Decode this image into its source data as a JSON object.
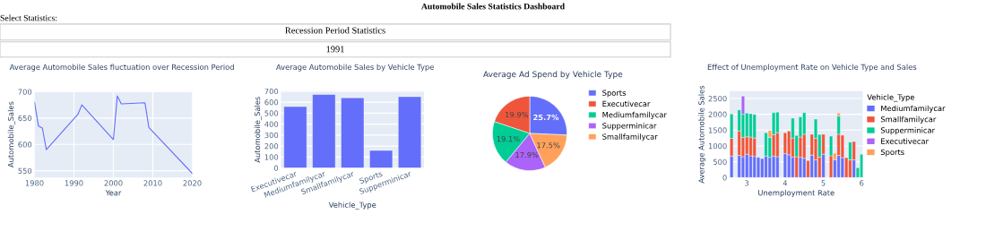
{
  "chart_data": [
    {
      "type": "other",
      "title": "Automobile Sales Statistics Dashboard",
      "annotations": [
        "Select Statistics:",
        "Recession Period Statistics",
        "1991"
      ]
    },
    {
      "type": "line",
      "title": "Average Automobile Sales fluctuation over Recession Period",
      "xlabel": "Year",
      "ylabel": "Automobile_Sales",
      "x": [
        1980,
        1981,
        1982,
        1983,
        1991,
        1992,
        2000,
        2001,
        2002,
        2008,
        2009,
        2020
      ],
      "values": [
        680,
        635,
        631,
        590,
        657,
        675,
        609,
        692,
        677,
        679,
        632,
        545
      ],
      "color": "#636efa",
      "xlim": [
        1980,
        2020
      ],
      "xticks": [
        1980,
        1990,
        2000,
        2010,
        2020
      ],
      "ylim": [
        537,
        701
      ],
      "yticks": [
        550,
        600,
        650,
        700
      ],
      "grid": true
    },
    {
      "type": "bar",
      "title": "Average Automobile Sales by Vehicle Type",
      "xlabel": "Vehicle_Type",
      "ylabel": "Automobile_Sales",
      "categories": [
        "Executivecar",
        "Mediumfamilycar",
        "Smallfamilycar",
        "Sports",
        "Supperminicar"
      ],
      "values": [
        560,
        670,
        640,
        160,
        650
      ],
      "color": "#636efa",
      "ylim": [
        0,
        700
      ],
      "yticks": [
        0,
        100,
        200,
        300,
        400,
        500,
        600,
        700
      ],
      "grid": "y"
    },
    {
      "type": "pie",
      "title": "Average Ad Spend by Vehicle Type",
      "categories": [
        "Sports",
        "Executivecar",
        "Mediumfamilycar",
        "Supperminicar",
        "Smallfamilycar"
      ],
      "values": [
        25.7,
        19.9,
        19.1,
        17.9,
        17.5
      ],
      "value_labels": [
        "25.7%",
        "19.9%",
        "19.1%",
        "17.9%",
        "17.5%"
      ],
      "colors": [
        "#636efa",
        "#ef553b",
        "#00cc96",
        "#ab63fa",
        "#ffa15a"
      ],
      "legend": "right"
    },
    {
      "type": "bar",
      "stacked": true,
      "title": "Effect of Unemployment Rate on Vehicle Type and Sales",
      "xlabel": "Unemployment Rate",
      "ylabel": "Average Automobile Sales",
      "legend_title": "Vehicle_Type",
      "legend": "right",
      "x": [
        2.6,
        2.8,
        2.9,
        3.0,
        3.1,
        3.2,
        3.3,
        3.4,
        3.5,
        3.6,
        3.7,
        3.8,
        4.0,
        4.1,
        4.2,
        4.3,
        4.4,
        4.5,
        4.6,
        4.7,
        4.8,
        4.9,
        5.0,
        5.2,
        5.3,
        5.4,
        5.5,
        5.6,
        5.7,
        5.8,
        5.9,
        6.0
      ],
      "series": [
        {
          "name": "Mediumfamilycar",
          "color": "#636efa",
          "values": [
            680,
            700,
            660,
            740,
            690,
            670,
            640,
            600,
            680,
            640,
            680,
            660,
            760,
            720,
            650,
            null,
            640,
            610,
            null,
            710,
            560,
            null,
            740,
            null,
            570,
            700,
            630,
            null,
            null,
            560,
            null,
            null
          ]
        },
        {
          "name": "Smallfamilycar",
          "color": "#ef553b",
          "values": [
            560,
            770,
            610,
            550,
            590,
            580,
            null,
            null,
            null,
            null,
            680,
            760,
            660,
            750,
            600,
            660,
            640,
            760,
            540,
            660,
            680,
            650,
            630,
            690,
            null,
            670,
            710,
            630,
            560,
            580,
            null,
            null
          ]
        },
        {
          "name": "Supperminicar",
          "color": "#00cc96",
          "values": [
            770,
            670,
            730,
            750,
            740,
            750,
            null,
            null,
            740,
            630,
            690,
            650,
            null,
            null,
            630,
            670,
            640,
            680,
            null,
            null,
            610,
            710,
            null,
            620,
            null,
            580,
            null,
            null,
            560,
            null,
            310,
            740
          ]
        },
        {
          "name": "Executivecar",
          "color": "#ab63fa",
          "values": [
            null,
            null,
            580,
            null,
            null,
            null,
            null,
            null,
            null,
            null,
            null,
            null,
            null,
            null,
            null,
            null,
            null,
            null,
            null,
            null,
            null,
            null,
            null,
            null,
            null,
            null,
            null,
            null,
            null,
            null,
            null,
            null
          ]
        },
        {
          "name": "Sports",
          "color": "#ffa15a",
          "values": [
            null,
            null,
            null,
            null,
            null,
            null,
            null,
            null,
            null,
            220,
            null,
            null,
            null,
            null,
            null,
            null,
            null,
            null,
            null,
            null,
            null,
            null,
            null,
            null,
            200,
            90,
            null,
            null,
            null,
            null,
            null,
            null
          ]
        }
      ],
      "xlim": [
        2.55,
        6.03
      ],
      "xticks": [
        3,
        4,
        5,
        6
      ],
      "ylim": [
        0,
        2730
      ],
      "yticks": [
        0,
        500,
        1000,
        1500,
        2000,
        2500
      ],
      "grid": "y"
    }
  ]
}
